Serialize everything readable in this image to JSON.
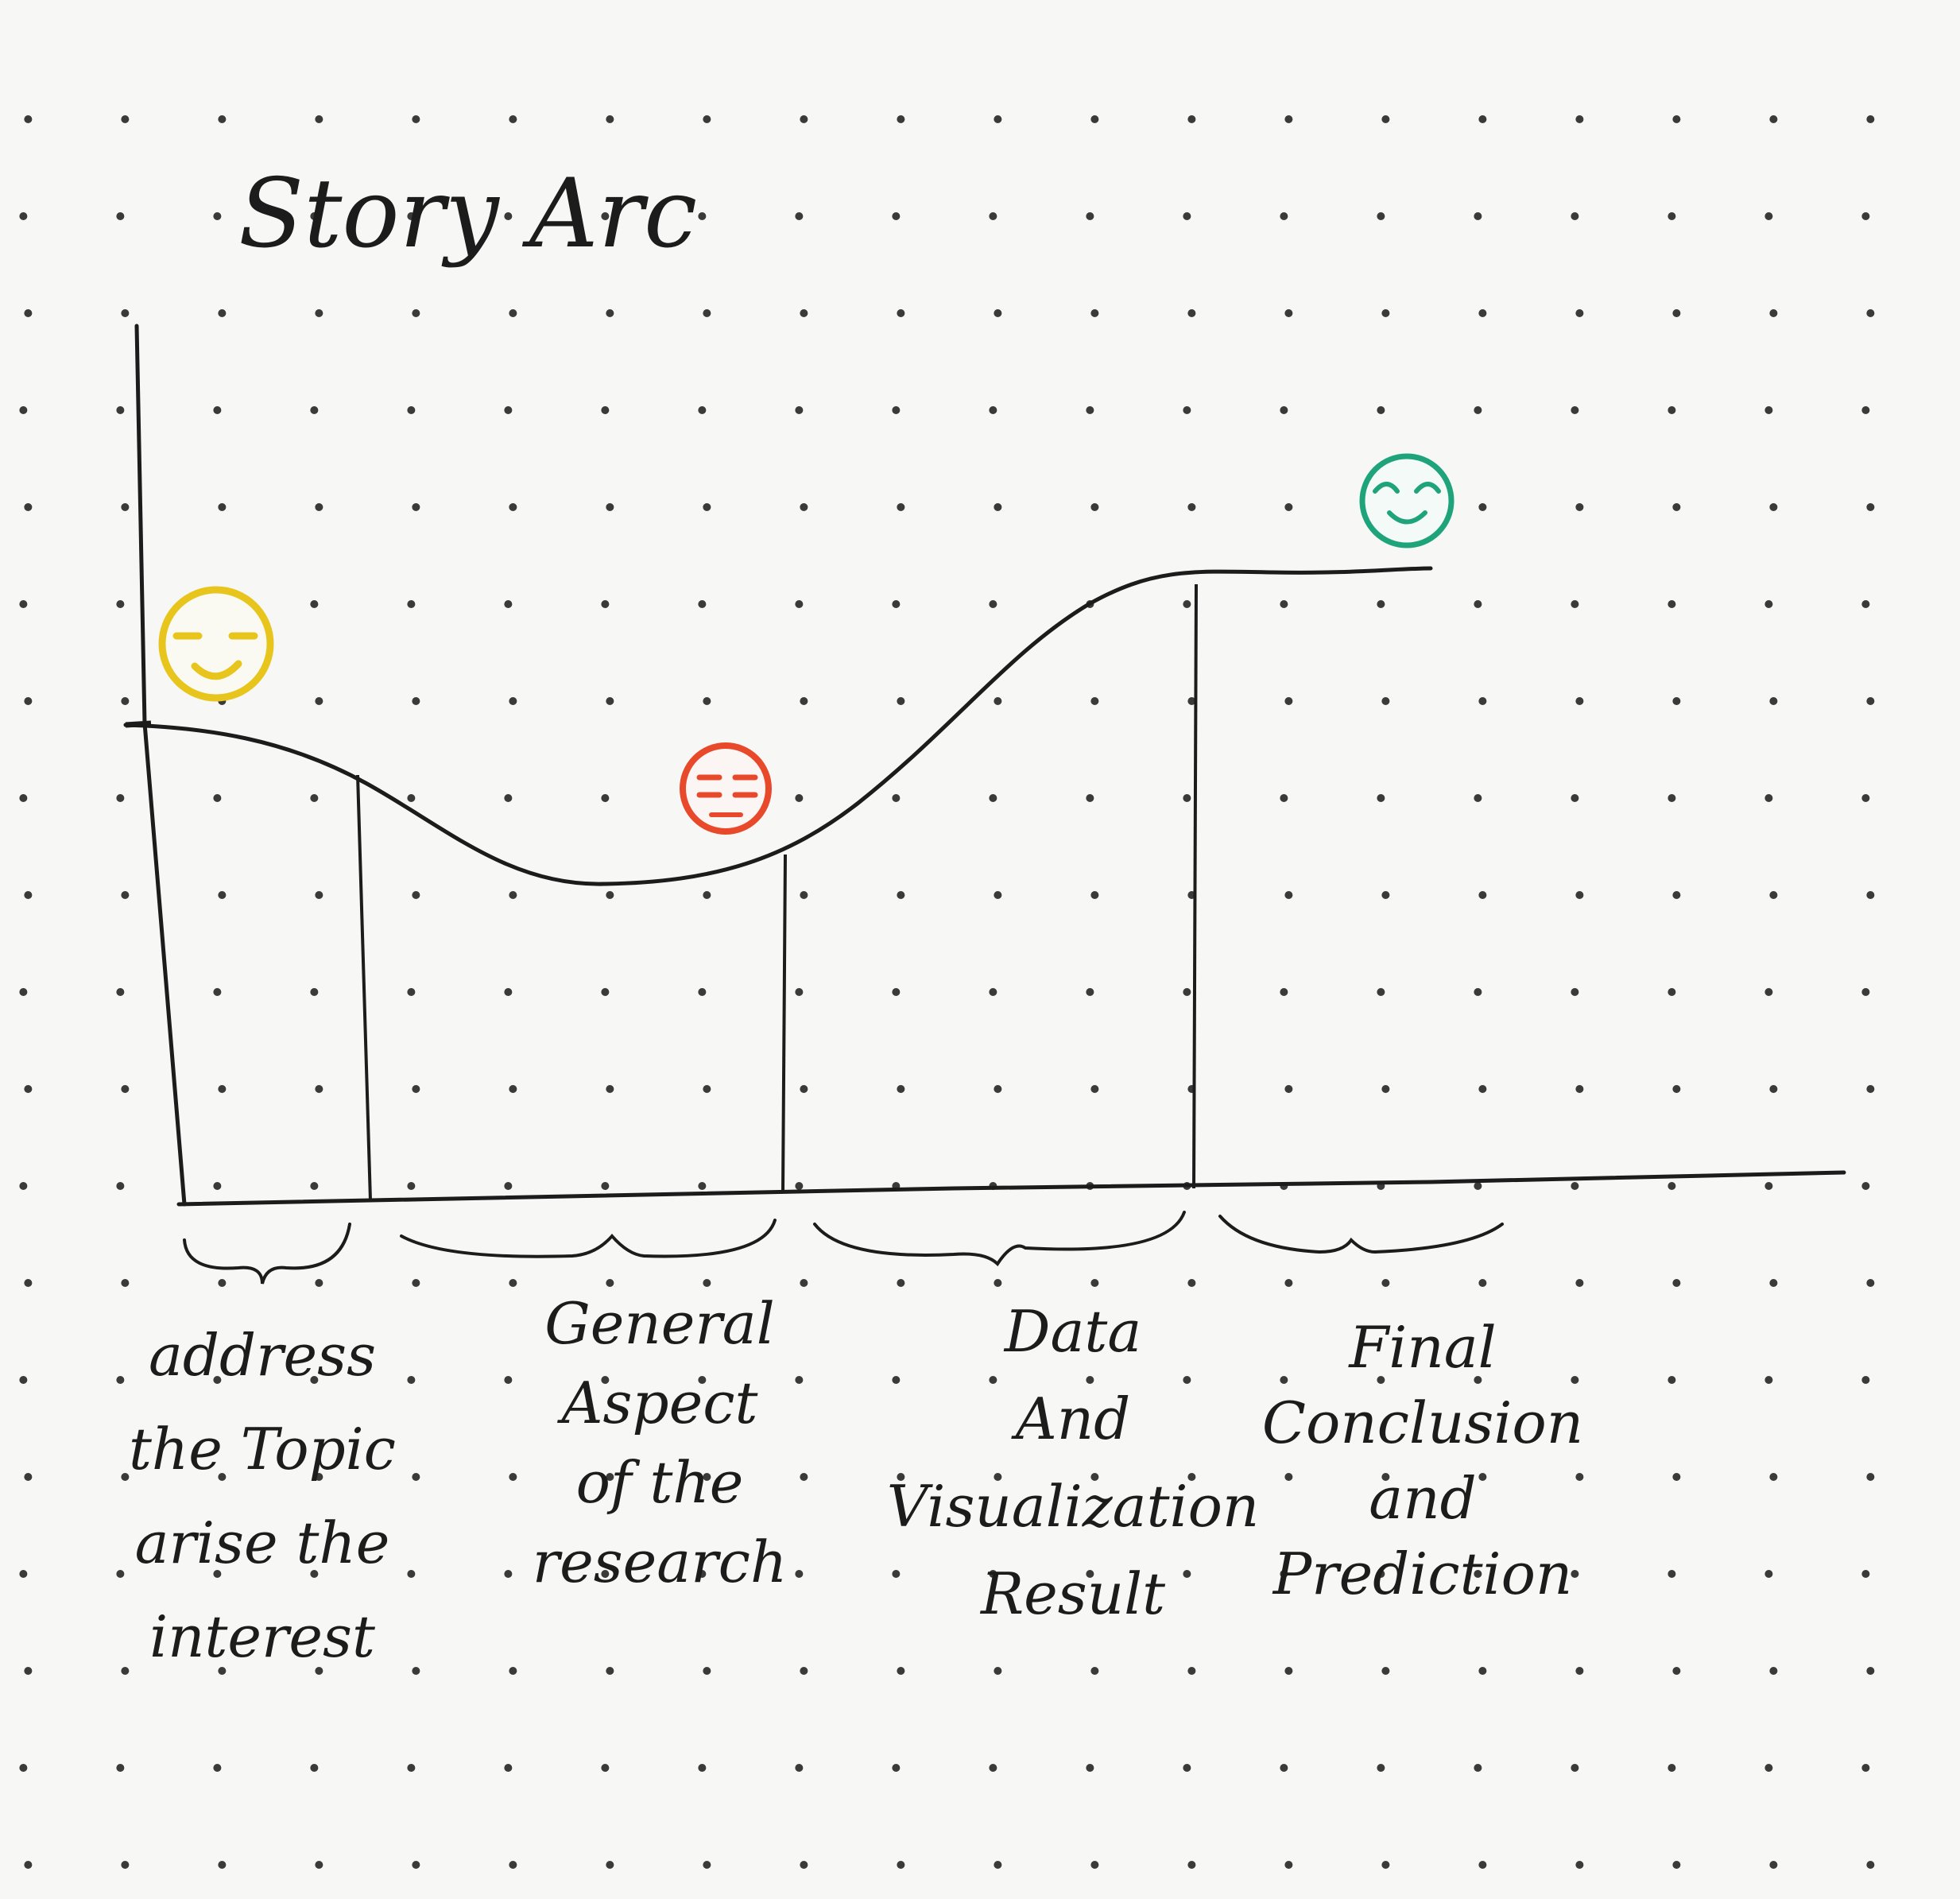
{
  "title": "Story Arc",
  "sections": [
    {
      "id": "intro",
      "lines": [
        "address",
        "the Topic",
        "arise the",
        "interest"
      ]
    },
    {
      "id": "general",
      "lines": [
        "General",
        "Aspect",
        "of the",
        "research"
      ]
    },
    {
      "id": "data",
      "lines": [
        "Data",
        "And",
        "Visualization",
        "Result"
      ]
    },
    {
      "id": "final",
      "lines": [
        "Final",
        "Conclusion",
        "and",
        "Prediction"
      ]
    }
  ],
  "emotions": [
    {
      "name": "content-face-icon",
      "mood": "content",
      "color": "#e8c51c"
    },
    {
      "name": "frustrated-face-icon",
      "mood": "frustrated",
      "color": "#e8492b"
    },
    {
      "name": "happy-face-icon",
      "mood": "happy",
      "color": "#1ea37a"
    }
  ],
  "colors": {
    "ink": "#1c1c1c",
    "paper": "#f7f7f5",
    "dots": "#3a3a3a"
  }
}
